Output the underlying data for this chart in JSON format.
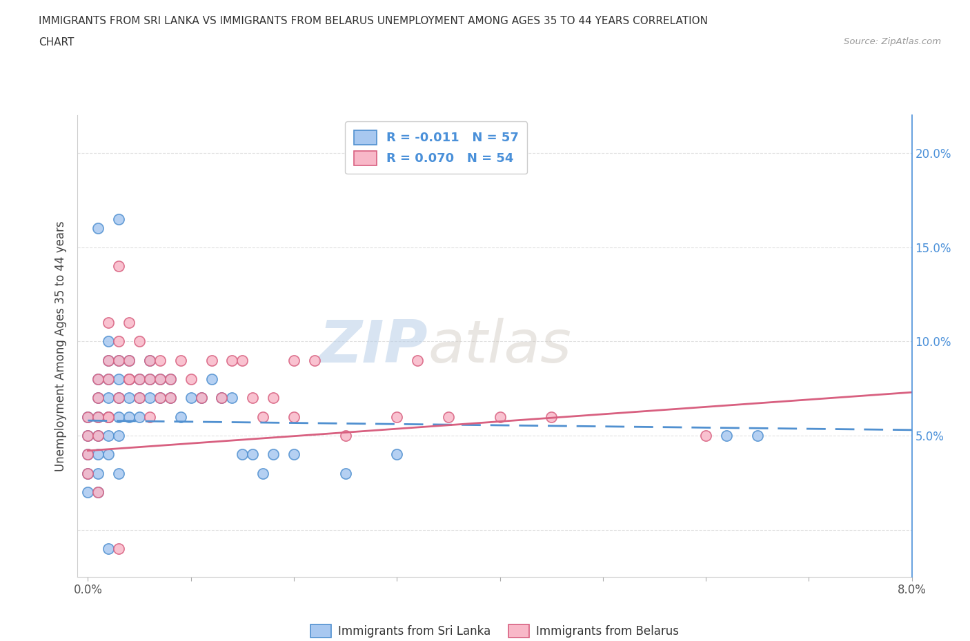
{
  "title_line1": "IMMIGRANTS FROM SRI LANKA VS IMMIGRANTS FROM BELARUS UNEMPLOYMENT AMONG AGES 35 TO 44 YEARS CORRELATION",
  "title_line2": "CHART",
  "source": "Source: ZipAtlas.com",
  "ylabel": "Unemployment Among Ages 35 to 44 years",
  "xlim": [
    -0.001,
    0.08
  ],
  "ylim": [
    -0.025,
    0.22
  ],
  "xtick_positions": [
    0.0,
    0.01,
    0.02,
    0.03,
    0.04,
    0.05,
    0.06,
    0.07,
    0.08
  ],
  "xticklabels": [
    "0.0%",
    "",
    "",
    "",
    "",
    "",
    "",
    "",
    "8.0%"
  ],
  "yticks_right": [
    0.05,
    0.1,
    0.15,
    0.2
  ],
  "yticklabels_right": [
    "5.0%",
    "10.0%",
    "15.0%",
    "20.0%"
  ],
  "sri_lanka_color": "#a8c8f0",
  "sri_lanka_edge": "#5090d0",
  "belarus_color": "#f8b8c8",
  "belarus_edge": "#d86080",
  "right_axis_color": "#4a90d9",
  "sri_lanka_R": -0.011,
  "sri_lanka_N": 57,
  "belarus_R": 0.07,
  "belarus_N": 54,
  "watermark_zip": "ZIP",
  "watermark_atlas": "atlas",
  "legend_label_sri_lanka": "Immigrants from Sri Lanka",
  "legend_label_belarus": "Immigrants from Belarus",
  "background_color": "#ffffff",
  "grid_color": "#dddddd",
  "sl_trend_x": [
    0.0,
    0.08
  ],
  "sl_trend_y": [
    0.058,
    0.053
  ],
  "bl_trend_x": [
    0.0,
    0.08
  ],
  "bl_trend_y": [
    0.042,
    0.073
  ],
  "sl_x": [
    0.0,
    0.0,
    0.0,
    0.0,
    0.0,
    0.001,
    0.001,
    0.001,
    0.001,
    0.001,
    0.001,
    0.001,
    0.002,
    0.002,
    0.002,
    0.002,
    0.002,
    0.002,
    0.003,
    0.003,
    0.003,
    0.003,
    0.003,
    0.004,
    0.004,
    0.004,
    0.004,
    0.005,
    0.005,
    0.005,
    0.006,
    0.006,
    0.006,
    0.007,
    0.007,
    0.008,
    0.008,
    0.009,
    0.01,
    0.011,
    0.012,
    0.013,
    0.014,
    0.015,
    0.016,
    0.018,
    0.02,
    0.025,
    0.03,
    0.003,
    0.002,
    0.001,
    0.002,
    0.003,
    0.062,
    0.065,
    0.017
  ],
  "sl_y": [
    0.05,
    0.04,
    0.03,
    0.02,
    0.06,
    0.05,
    0.06,
    0.07,
    0.04,
    0.03,
    0.02,
    0.08,
    0.07,
    0.08,
    0.06,
    0.05,
    0.04,
    0.09,
    0.08,
    0.07,
    0.06,
    0.09,
    0.05,
    0.08,
    0.07,
    0.06,
    0.09,
    0.08,
    0.07,
    0.06,
    0.08,
    0.07,
    0.09,
    0.07,
    0.08,
    0.07,
    0.08,
    0.06,
    0.07,
    0.07,
    0.08,
    0.07,
    0.07,
    0.04,
    0.04,
    0.04,
    0.04,
    0.03,
    0.04,
    0.165,
    0.1,
    0.16,
    -0.01,
    0.03,
    0.05,
    0.05,
    0.03
  ],
  "bl_x": [
    0.0,
    0.0,
    0.0,
    0.0,
    0.001,
    0.001,
    0.001,
    0.001,
    0.002,
    0.002,
    0.002,
    0.002,
    0.003,
    0.003,
    0.003,
    0.004,
    0.004,
    0.004,
    0.005,
    0.005,
    0.006,
    0.006,
    0.007,
    0.007,
    0.008,
    0.008,
    0.009,
    0.01,
    0.011,
    0.012,
    0.013,
    0.014,
    0.015,
    0.016,
    0.017,
    0.018,
    0.02,
    0.022,
    0.025,
    0.03,
    0.032,
    0.003,
    0.004,
    0.002,
    0.001,
    0.003,
    0.005,
    0.006,
    0.007,
    0.035,
    0.04,
    0.06,
    0.02,
    0.045
  ],
  "bl_y": [
    0.05,
    0.04,
    0.03,
    0.06,
    0.05,
    0.08,
    0.07,
    0.06,
    0.09,
    0.11,
    0.08,
    0.06,
    0.09,
    0.1,
    0.07,
    0.08,
    0.11,
    0.09,
    0.1,
    0.08,
    0.09,
    0.08,
    0.09,
    0.08,
    0.08,
    0.07,
    0.09,
    0.08,
    0.07,
    0.09,
    0.07,
    0.09,
    0.09,
    0.07,
    0.06,
    0.07,
    0.09,
    0.09,
    0.05,
    0.06,
    0.09,
    0.14,
    0.08,
    0.06,
    0.02,
    -0.01,
    0.07,
    0.06,
    0.07,
    0.06,
    0.06,
    0.05,
    0.06,
    0.06
  ]
}
